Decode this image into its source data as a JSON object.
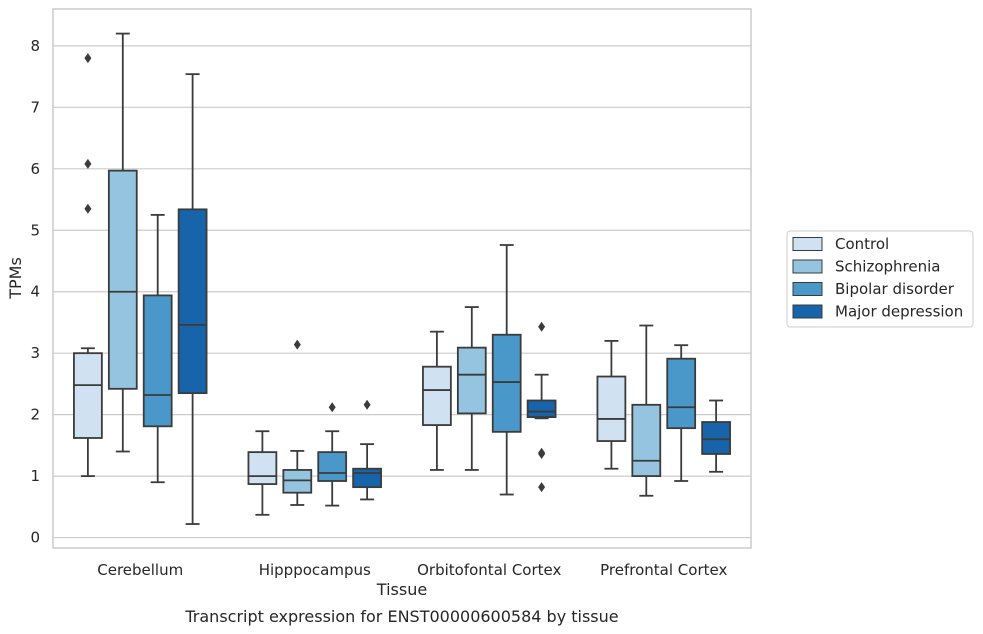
{
  "caption": "Transcript expression for ENST00000600584 by tissue",
  "chart_data": {
    "type": "box",
    "xlabel": "Tissue",
    "ylabel": "TPMs",
    "ylim": [
      -0.17,
      8.6
    ],
    "yticks": [
      "0",
      "1",
      "2",
      "3",
      "4",
      "5",
      "6",
      "7",
      "8"
    ],
    "grid": "horizontal",
    "legend_position": "right",
    "categories": [
      "Cerebellum",
      "Hipppocampus",
      "Orbitofontal Cortex",
      "Prefrontal Cortex"
    ],
    "series": [
      {
        "name": "Control",
        "color": "#d0e1f2",
        "boxes": [
          {
            "whisker_low": 1.0,
            "q1": 1.62,
            "median": 2.48,
            "q3": 3.0,
            "whisker_high": 3.08,
            "outliers": [
              5.35,
              6.08,
              7.8
            ]
          },
          {
            "whisker_low": 0.37,
            "q1": 0.87,
            "median": 1.0,
            "q3": 1.39,
            "whisker_high": 1.73,
            "outliers": []
          },
          {
            "whisker_low": 1.1,
            "q1": 1.83,
            "median": 2.4,
            "q3": 2.78,
            "whisker_high": 3.35,
            "outliers": []
          },
          {
            "whisker_low": 1.12,
            "q1": 1.57,
            "median": 1.93,
            "q3": 2.62,
            "whisker_high": 3.2,
            "outliers": []
          }
        ]
      },
      {
        "name": "Schizophrenia",
        "color": "#94c4df",
        "boxes": [
          {
            "whisker_low": 1.4,
            "q1": 2.42,
            "median": 4.0,
            "q3": 5.97,
            "whisker_high": 8.2,
            "outliers": []
          },
          {
            "whisker_low": 0.53,
            "q1": 0.73,
            "median": 0.93,
            "q3": 1.1,
            "whisker_high": 1.41,
            "outliers": [
              3.14
            ]
          },
          {
            "whisker_low": 1.1,
            "q1": 2.02,
            "median": 2.65,
            "q3": 3.09,
            "whisker_high": 3.75,
            "outliers": []
          },
          {
            "whisker_low": 0.68,
            "q1": 1.0,
            "median": 1.25,
            "q3": 2.16,
            "whisker_high": 3.45,
            "outliers": []
          }
        ]
      },
      {
        "name": "Bipolar disorder",
        "color": "#4a98c9",
        "boxes": [
          {
            "whisker_low": 0.9,
            "q1": 1.81,
            "median": 2.32,
            "q3": 3.94,
            "whisker_high": 5.25,
            "outliers": []
          },
          {
            "whisker_low": 0.52,
            "q1": 0.92,
            "median": 1.05,
            "q3": 1.39,
            "whisker_high": 1.73,
            "outliers": [
              2.12
            ]
          },
          {
            "whisker_low": 0.7,
            "q1": 1.72,
            "median": 2.53,
            "q3": 3.3,
            "whisker_high": 4.76,
            "outliers": []
          },
          {
            "whisker_low": 0.92,
            "q1": 1.78,
            "median": 2.12,
            "q3": 2.91,
            "whisker_high": 3.13,
            "outliers": []
          }
        ]
      },
      {
        "name": "Major depression",
        "color": "#1764ab",
        "boxes": [
          {
            "whisker_low": 0.22,
            "q1": 2.35,
            "median": 3.46,
            "q3": 5.34,
            "whisker_high": 7.54,
            "outliers": []
          },
          {
            "whisker_low": 0.62,
            "q1": 0.82,
            "median": 1.05,
            "q3": 1.12,
            "whisker_high": 1.52,
            "outliers": [
              2.16
            ]
          },
          {
            "whisker_low": 1.94,
            "q1": 1.96,
            "median": 2.05,
            "q3": 2.23,
            "whisker_high": 2.65,
            "outliers": [
              0.82,
              1.36,
              1.38,
              3.43
            ]
          },
          {
            "whisker_low": 1.07,
            "q1": 1.36,
            "median": 1.6,
            "q3": 1.88,
            "whisker_high": 2.23,
            "outliers": []
          }
        ]
      }
    ]
  }
}
